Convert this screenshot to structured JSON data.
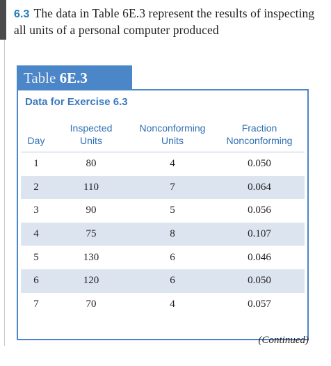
{
  "exercise": {
    "number": "6.3",
    "text": "The data in Table 6E.3 represent the results of inspecting all units of a personal computer produced"
  },
  "table": {
    "tab_word": "Table",
    "tab_number": "6E.3",
    "caption": "Data for Exercise 6.3",
    "headers": [
      [
        "Day"
      ],
      [
        "Inspected",
        "Units"
      ],
      [
        "Nonconforming",
        "Units"
      ],
      [
        "Fraction",
        "Nonconforming"
      ]
    ],
    "rows": [
      [
        "1",
        "80",
        "4",
        "0.050"
      ],
      [
        "2",
        "110",
        "7",
        "0.064"
      ],
      [
        "3",
        "90",
        "5",
        "0.056"
      ],
      [
        "4",
        "75",
        "8",
        "0.107"
      ],
      [
        "5",
        "130",
        "6",
        "0.046"
      ],
      [
        "6",
        "120",
        "6",
        "0.050"
      ],
      [
        "7",
        "70",
        "4",
        "0.057"
      ]
    ],
    "continued": "(Continued)"
  },
  "colors": {
    "accent": "#4a86c8",
    "header_text": "#2e6fb2",
    "row_shade": "#dbe4ef",
    "exercise_number": "#1f7bbd"
  }
}
